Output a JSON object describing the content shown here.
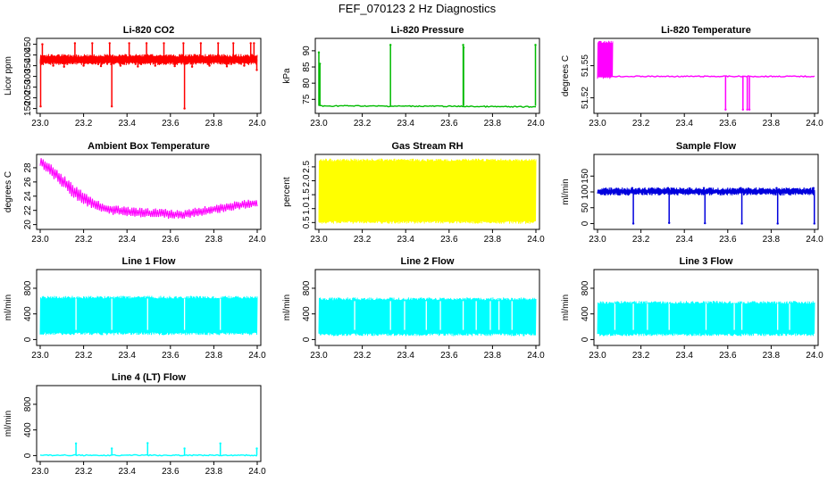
{
  "title": "FEF_070123  2 Hz Diagnostics",
  "chart_data": [
    {
      "id": "co2",
      "type": "line",
      "title": "Li-820 CO2",
      "ylabel": "Licor ppm",
      "color": "#ff0000",
      "xlim": [
        23.0,
        24.0
      ],
      "ylim": [
        140,
        465
      ],
      "xticks": [
        23.0,
        23.2,
        23.4,
        23.6,
        23.8,
        24.0
      ],
      "xticklabels": [
        "23.0",
        "23.2",
        "23.4",
        "23.6",
        "23.8",
        "24.0"
      ],
      "yticks": [
        150,
        200,
        250,
        300,
        350,
        400,
        450
      ],
      "yticklabels": [
        "150",
        "200",
        "250",
        "300",
        "350",
        "400",
        "450"
      ],
      "series": [
        {
          "kind": "polyline",
          "x": [
            23.0,
            23.1,
            23.2,
            23.3,
            23.4,
            23.5,
            23.6,
            23.7,
            23.8,
            23.9,
            24.0
          ],
          "y": [
            380,
            382,
            380,
            378,
            380,
            381,
            379,
            380,
            378,
            377,
            376
          ]
        },
        {
          "kind": "band",
          "x": [
            23.0,
            24.0
          ],
          "low": 365,
          "high": 392
        },
        {
          "kind": "spikes",
          "base": 380,
          "x": [
            23.002,
            23.33,
            23.665,
            23.998
          ],
          "y": [
            160,
            160,
            150,
            330
          ]
        },
        {
          "kind": "spikes",
          "base": 380,
          "x": [
            23.01,
            23.16,
            23.24,
            23.32,
            23.41,
            23.49,
            23.57,
            23.66,
            23.74,
            23.82,
            23.89,
            23.97,
            23.985
          ],
          "y": [
            450,
            455,
            455,
            455,
            455,
            455,
            455,
            455,
            455,
            455,
            455,
            455,
            455
          ]
        },
        {
          "kind": "spikes",
          "base": 380,
          "x": [
            23.06,
            23.11,
            23.2,
            23.28,
            23.37,
            23.45,
            23.53,
            23.62,
            23.7,
            23.78,
            23.86,
            23.94
          ],
          "y": [
            350,
            345,
            350,
            348,
            350,
            346,
            350,
            348,
            345,
            350,
            347,
            350
          ]
        }
      ]
    },
    {
      "id": "pressure",
      "type": "line",
      "title": "Li-820 Pressure",
      "ylabel": "kPa",
      "color": "#00bb00",
      "xlim": [
        23.0,
        24.0
      ],
      "ylim": [
        71.5,
        93
      ],
      "xticks": [
        23.0,
        23.2,
        23.4,
        23.6,
        23.8,
        24.0
      ],
      "xticklabels": [
        "23.0",
        "23.2",
        "23.4",
        "23.6",
        "23.8",
        "24.0"
      ],
      "yticks": [
        75,
        80,
        85,
        90
      ],
      "yticklabels": [
        "75",
        "80",
        "85",
        "90"
      ],
      "series": [
        {
          "kind": "polyline",
          "x": [
            23.0,
            23.02,
            23.1,
            23.3,
            23.5,
            23.7,
            23.9,
            24.0
          ],
          "y": [
            73.2,
            72.9,
            73.0,
            72.9,
            72.9,
            72.8,
            72.7,
            72.7
          ]
        },
        {
          "kind": "spikes",
          "base": 73,
          "x": [
            23.0,
            23.005,
            23.33,
            23.665,
            23.667,
            23.998
          ],
          "y": [
            89.5,
            86,
            91.8,
            91.8,
            91,
            91.8
          ]
        }
      ]
    },
    {
      "id": "temperature",
      "type": "line",
      "title": "Li-820 Temperature",
      "ylabel": "degrees C",
      "color": "#ff00ff",
      "xlim": [
        23.0,
        24.0
      ],
      "ylim": [
        51.508,
        51.573
      ],
      "xticks": [
        23.0,
        23.2,
        23.4,
        23.6,
        23.8,
        24.0
      ],
      "xticklabels": [
        "23.0",
        "23.2",
        "23.4",
        "23.6",
        "23.8",
        "24.0"
      ],
      "yticks": [
        51.52,
        51.55
      ],
      "yticklabels": [
        "51.52",
        "51.55"
      ],
      "series": [
        {
          "kind": "polyline",
          "x": [
            23.0,
            24.0
          ],
          "y": [
            51.54,
            51.54
          ]
        },
        {
          "kind": "band",
          "x": [
            23.0,
            23.07
          ],
          "low": 51.54,
          "high": 51.571
        },
        {
          "kind": "spikes",
          "base": 51.54,
          "x": [
            23.59,
            23.67,
            23.69,
            23.7
          ],
          "y": [
            51.509,
            51.509,
            51.509,
            51.509
          ]
        }
      ]
    },
    {
      "id": "ambient",
      "type": "line",
      "title": "Ambient Box Temperature",
      "ylabel": "degrees C",
      "color": "#ff00ff",
      "xlim": [
        23.0,
        24.0
      ],
      "ylim": [
        19.7,
        29.5
      ],
      "xticks": [
        23.0,
        23.2,
        23.4,
        23.6,
        23.8,
        24.0
      ],
      "xticklabels": [
        "23.0",
        "23.2",
        "23.4",
        "23.6",
        "23.8",
        "24.0"
      ],
      "yticks": [
        20,
        22,
        24,
        26,
        28
      ],
      "yticklabels": [
        "20",
        "22",
        "24",
        "26",
        "28"
      ],
      "series": [
        {
          "kind": "envelope",
          "x": [
            23.0,
            23.05,
            23.1,
            23.15,
            23.2,
            23.25,
            23.3,
            23.35,
            23.4,
            23.5,
            23.6,
            23.65,
            23.7,
            23.8,
            23.9,
            24.0
          ],
          "low": [
            28.2,
            26.8,
            25.2,
            23.8,
            22.8,
            22.0,
            21.5,
            21.3,
            21.1,
            21.0,
            20.8,
            20.8,
            21.0,
            21.5,
            22.0,
            22.4
          ],
          "high": [
            29.5,
            28.6,
            27.2,
            25.8,
            24.6,
            23.6,
            23.0,
            22.7,
            22.5,
            22.3,
            22.2,
            22.0,
            22.3,
            22.8,
            23.3,
            23.7
          ]
        }
      ]
    },
    {
      "id": "rh",
      "type": "line",
      "title": "Gas Stream RH",
      "ylabel": "percent",
      "color": "#ffff00",
      "xlim": [
        23.0,
        24.0
      ],
      "ylim": [
        0.35,
        2.85
      ],
      "xticks": [
        23.0,
        23.2,
        23.4,
        23.6,
        23.8,
        24.0
      ],
      "xticklabels": [
        "23.0",
        "23.2",
        "23.4",
        "23.6",
        "23.8",
        "24.0"
      ],
      "yticks": [
        0.5,
        1.0,
        1.5,
        2.0,
        2.5
      ],
      "yticklabels": [
        "0.5",
        "1.0",
        "1.5",
        "2.0",
        "2.5"
      ],
      "series": [
        {
          "kind": "band",
          "x": [
            23.0,
            24.0
          ],
          "low": 0.55,
          "high": 2.7
        }
      ]
    },
    {
      "id": "sample",
      "type": "line",
      "title": "Sample Flow",
      "ylabel": "ml/min",
      "color": "#0000dd",
      "xlim": [
        23.0,
        24.0
      ],
      "ylim": [
        -10,
        210
      ],
      "xticks": [
        23.0,
        23.2,
        23.4,
        23.6,
        23.8,
        24.0
      ],
      "xticklabels": [
        "23.0",
        "23.2",
        "23.4",
        "23.6",
        "23.8",
        "24.0"
      ],
      "yticks": [
        0,
        50,
        100,
        150
      ],
      "yticklabels": [
        "0",
        "50",
        "100",
        "150"
      ],
      "series": [
        {
          "kind": "polyline",
          "x": [
            23.0,
            23.02,
            23.1,
            23.3,
            23.5,
            23.7,
            23.9,
            24.0
          ],
          "y": [
            98,
            97,
            101,
            102,
            103,
            104,
            103,
            102
          ]
        },
        {
          "kind": "band",
          "x": [
            23.0,
            24.0
          ],
          "low": 97,
          "high": 106
        },
        {
          "kind": "spikes",
          "base": 102,
          "x": [
            23.165,
            23.33,
            23.495,
            23.665,
            23.83,
            23.999
          ],
          "y": [
            0,
            2,
            1,
            0,
            0,
            0
          ]
        },
        {
          "kind": "spikes",
          "base": 102,
          "x": [
            23.16,
            23.325,
            23.49,
            23.66,
            23.825,
            23.995
          ],
          "y": [
            112,
            112,
            112,
            112,
            112,
            112
          ]
        }
      ]
    },
    {
      "id": "line1",
      "type": "line",
      "title": "Line 1 Flow",
      "ylabel": "ml/min",
      "color": "#00ffff",
      "xlim": [
        23.0,
        24.0
      ],
      "ylim": [
        -50,
        1050
      ],
      "xticks": [
        23.0,
        23.2,
        23.4,
        23.6,
        23.8,
        24.0
      ],
      "xticklabels": [
        "23.0",
        "23.2",
        "23.4",
        "23.6",
        "23.8",
        "24.0"
      ],
      "yticks": [
        0,
        400,
        800
      ],
      "yticklabels": [
        "0",
        "400",
        "800"
      ],
      "series": [
        {
          "kind": "band",
          "x": [
            23.0,
            24.0
          ],
          "low": 110,
          "high": 640
        },
        {
          "kind": "gaps",
          "x": [
            23.165,
            23.33,
            23.495,
            23.665,
            23.83
          ],
          "low": 150,
          "high": 640
        }
      ]
    },
    {
      "id": "line2",
      "type": "line",
      "title": "Line 2 Flow",
      "ylabel": "ml/min",
      "color": "#00ffff",
      "xlim": [
        23.0,
        24.0
      ],
      "ylim": [
        -50,
        1050
      ],
      "xticks": [
        23.0,
        23.2,
        23.4,
        23.6,
        23.8,
        24.0
      ],
      "xticklabels": [
        "23.0",
        "23.2",
        "23.4",
        "23.6",
        "23.8",
        "24.0"
      ],
      "yticks": [
        0,
        400,
        800
      ],
      "yticklabels": [
        "0",
        "400",
        "800"
      ],
      "series": [
        {
          "kind": "band",
          "x": [
            23.0,
            24.0
          ],
          "low": 95,
          "high": 615
        },
        {
          "kind": "gaps",
          "x": [
            23.165,
            23.33,
            23.395,
            23.495,
            23.56,
            23.665,
            23.725,
            23.79,
            23.83,
            23.89
          ],
          "low": 150,
          "high": 600
        }
      ]
    },
    {
      "id": "line3",
      "type": "line",
      "title": "Line 3 Flow",
      "ylabel": "ml/min",
      "color": "#00ffff",
      "xlim": [
        23.0,
        24.0
      ],
      "ylim": [
        -50,
        1050
      ],
      "xticks": [
        23.0,
        23.2,
        23.4,
        23.6,
        23.8,
        24.0
      ],
      "xticklabels": [
        "23.0",
        "23.2",
        "23.4",
        "23.6",
        "23.8",
        "24.0"
      ],
      "yticks": [
        0,
        400,
        800
      ],
      "yticklabels": [
        "0",
        "400",
        "800"
      ],
      "series": [
        {
          "kind": "band",
          "x": [
            23.0,
            24.0
          ],
          "low": 95,
          "high": 560
        },
        {
          "kind": "gaps",
          "x": [
            23.08,
            23.165,
            23.23,
            23.33,
            23.5,
            23.63,
            23.665,
            23.83,
            23.885
          ],
          "low": 150,
          "high": 560
        }
      ]
    },
    {
      "id": "line4",
      "type": "line",
      "title": "Line 4 (LT) Flow",
      "ylabel": "ml/min",
      "color": "#00ffff",
      "xlim": [
        23.0,
        24.0
      ],
      "ylim": [
        -50,
        1050
      ],
      "xticks": [
        23.0,
        23.2,
        23.4,
        23.6,
        23.8,
        24.0
      ],
      "xticklabels": [
        "23.0",
        "23.2",
        "23.4",
        "23.6",
        "23.8",
        "24.0"
      ],
      "yticks": [
        0,
        400,
        800
      ],
      "yticklabels": [
        "0",
        "400",
        "800"
      ],
      "series": [
        {
          "kind": "polyline",
          "x": [
            23.0,
            24.0
          ],
          "y": [
            5,
            5
          ]
        },
        {
          "kind": "spikes",
          "base": 5,
          "x": [
            23.165,
            23.33,
            23.495,
            23.665,
            23.83,
            23.998
          ],
          "y": [
            190,
            110,
            195,
            110,
            190,
            110
          ]
        }
      ]
    }
  ]
}
